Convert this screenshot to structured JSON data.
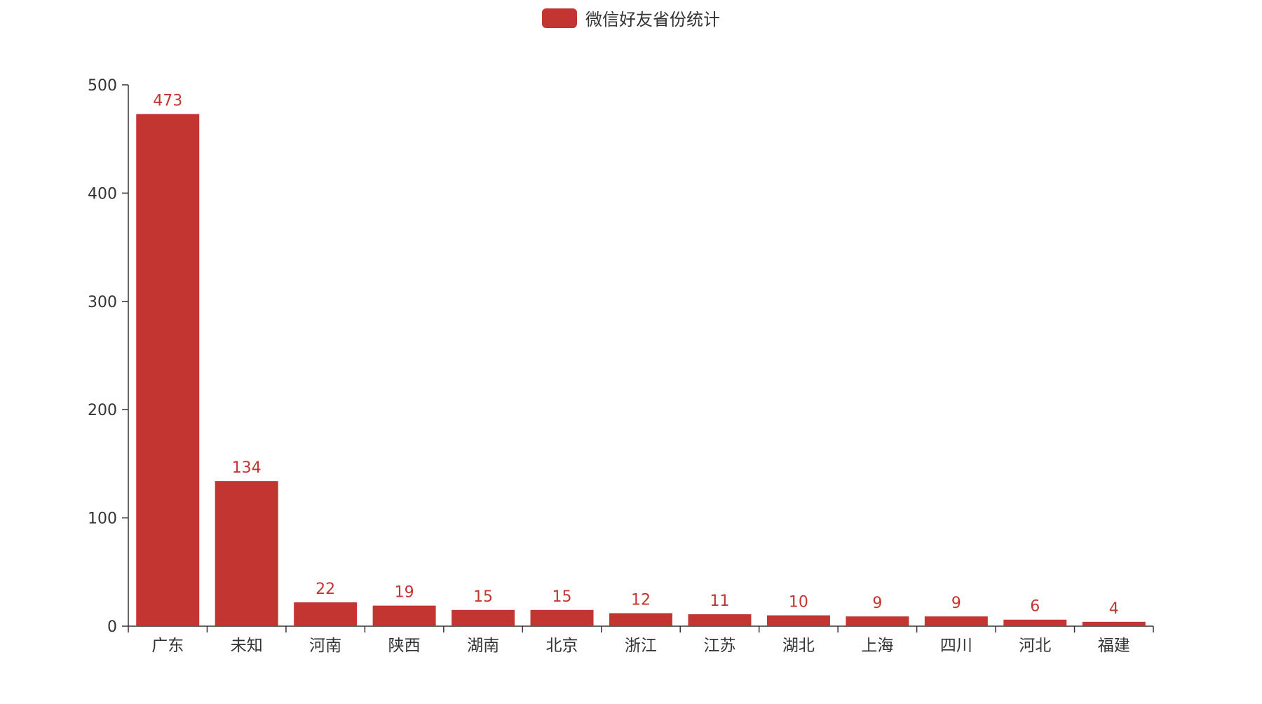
{
  "colors": {
    "series": "#c23531",
    "axis": "#333333",
    "label_text": "#c23531",
    "tick_text": "#333333"
  },
  "chart_data": {
    "type": "bar",
    "categories": [
      "广东",
      "未知",
      "河南",
      "陕西",
      "湖南",
      "北京",
      "浙江",
      "江苏",
      "湖北",
      "上海",
      "四川",
      "河北",
      "福建"
    ],
    "series": [
      {
        "name": "微信好友省份统计",
        "values": [
          473,
          134,
          22,
          19,
          15,
          15,
          12,
          11,
          10,
          9,
          9,
          6,
          4
        ]
      }
    ],
    "ylim": [
      0,
      500
    ],
    "yticks": [
      0,
      100,
      200,
      300,
      400,
      500
    ],
    "title": "",
    "xlabel": "",
    "ylabel": "",
    "legend_position": "top-center",
    "grid": false,
    "show_value_labels": true
  }
}
